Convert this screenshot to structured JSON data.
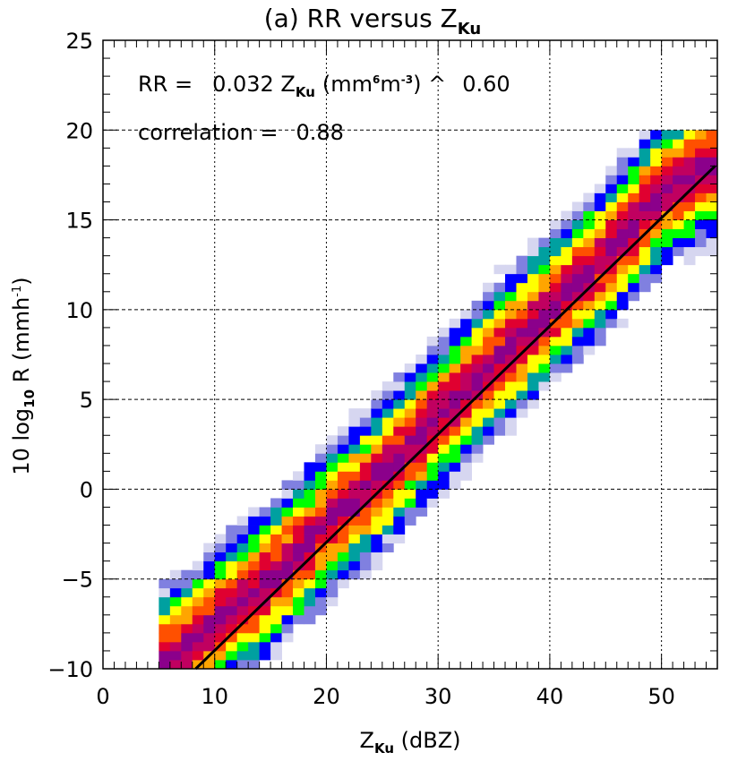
{
  "chart_data": {
    "type": "heatmap",
    "title_main": "(a) RR versus Z",
    "title_sub": "Ku",
    "xlabel_main": "Z",
    "xlabel_sub": "Ku",
    "xlabel_unit": " (dBZ)",
    "ylabel_prefix": "10 log",
    "ylabel_sub": "10",
    "ylabel_mid": " R (mmh",
    "ylabel_sup": "-1",
    "ylabel_end": ")",
    "xlim": [
      0,
      55
    ],
    "ylim": [
      -10,
      25
    ],
    "xticks": [
      0,
      10,
      20,
      30,
      40,
      50
    ],
    "yticks": [
      -10,
      -5,
      0,
      5,
      10,
      15,
      20,
      25
    ],
    "grid": true,
    "annotations": {
      "fit_lhs": "RR =",
      "fit_coef": "0.032 Z",
      "fit_coef_sub": "Ku",
      "fit_units_open": "(mm",
      "fit_units_sup1": "6",
      "fit_units_mid": "m",
      "fit_units_sup2": "-3",
      "fit_units_close": ") ^",
      "fit_exponent": "0.60",
      "correlation_label": "correlation =",
      "correlation_value": "0.88"
    },
    "fit_line": {
      "x": [
        8.3,
        54.8
      ],
      "y": [
        -10,
        18
      ]
    },
    "density_ridge": [
      [
        5,
        -10
      ],
      [
        10,
        -7.5
      ],
      [
        15,
        -5
      ],
      [
        20,
        -2
      ],
      [
        25,
        0.8
      ],
      [
        30,
        4
      ],
      [
        35,
        7
      ],
      [
        40,
        10
      ],
      [
        45,
        13
      ],
      [
        50,
        16.5
      ],
      [
        54,
        18
      ]
    ],
    "colors": [
      "#d6d6f0",
      "#8080e0",
      "#0000ff",
      "#00a0a0",
      "#00ff00",
      "#ffff00",
      "#ffa500",
      "#ff5000",
      "#e00030",
      "#c00060",
      "#8b008b"
    ]
  }
}
